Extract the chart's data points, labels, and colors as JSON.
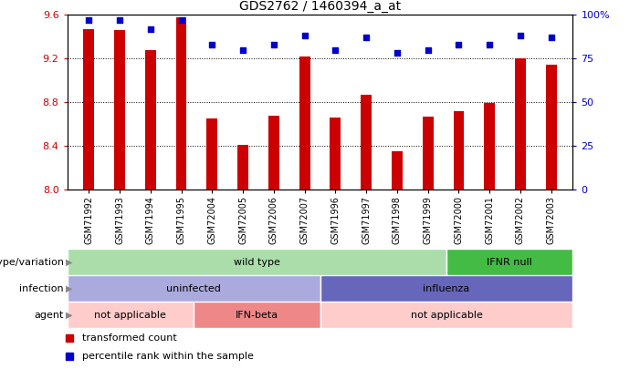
{
  "title": "GDS2762 / 1460394_a_at",
  "categories": [
    "GSM71992",
    "GSM71993",
    "GSM71994",
    "GSM71995",
    "GSM72004",
    "GSM72005",
    "GSM72006",
    "GSM72007",
    "GSM71996",
    "GSM71997",
    "GSM71998",
    "GSM71999",
    "GSM72000",
    "GSM72001",
    "GSM72002",
    "GSM72003"
  ],
  "bar_values": [
    9.47,
    9.46,
    9.28,
    9.58,
    8.65,
    8.41,
    8.68,
    9.22,
    8.66,
    8.87,
    8.35,
    8.67,
    8.72,
    8.79,
    9.2,
    9.14
  ],
  "dot_values": [
    97,
    97,
    92,
    97,
    83,
    80,
    83,
    88,
    80,
    87,
    78,
    80,
    83,
    83,
    88,
    87
  ],
  "ylim_left": [
    8.0,
    9.6
  ],
  "ylim_right": [
    0,
    100
  ],
  "yticks_left": [
    8.0,
    8.4,
    8.8,
    9.2,
    9.6
  ],
  "yticks_right": [
    0,
    25,
    50,
    75,
    100
  ],
  "ytick_labels_right": [
    "0",
    "25",
    "50",
    "75",
    "100%"
  ],
  "bar_color": "#cc0000",
  "dot_color": "#0000cc",
  "plot_bg": "#ffffff",
  "annotation_rows": [
    {
      "label": "genotype/variation",
      "segments": [
        {
          "text": "wild type",
          "start": 0,
          "end": 12,
          "color": "#aaddaa"
        },
        {
          "text": "IFNR null",
          "start": 12,
          "end": 16,
          "color": "#44bb44"
        }
      ]
    },
    {
      "label": "infection",
      "segments": [
        {
          "text": "uninfected",
          "start": 0,
          "end": 8,
          "color": "#aaaadd"
        },
        {
          "text": "influenza",
          "start": 8,
          "end": 16,
          "color": "#6666bb"
        }
      ]
    },
    {
      "label": "agent",
      "segments": [
        {
          "text": "not applicable",
          "start": 0,
          "end": 4,
          "color": "#ffcccc"
        },
        {
          "text": "IFN-beta",
          "start": 4,
          "end": 8,
          "color": "#ee8888"
        },
        {
          "text": "not applicable",
          "start": 8,
          "end": 16,
          "color": "#ffcccc"
        }
      ]
    }
  ],
  "legend_items": [
    {
      "label": "transformed count",
      "color": "#cc0000"
    },
    {
      "label": "percentile rank within the sample",
      "color": "#0000cc"
    }
  ]
}
